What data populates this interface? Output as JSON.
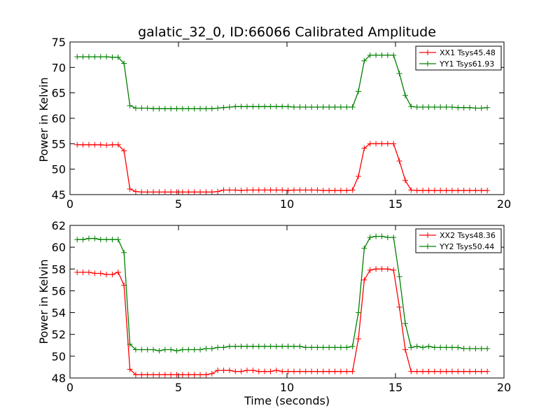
{
  "chart_data": [
    {
      "type": "line",
      "title": "galatic_32_0, ID:66066 Calibrated Amplitude",
      "xlabel": "",
      "ylabel": "Power in Kelvin",
      "xlim": [
        0,
        20
      ],
      "ylim": [
        45,
        75
      ],
      "xticks": [
        0,
        5,
        10,
        15,
        20
      ],
      "yticks": [
        45,
        50,
        55,
        60,
        65,
        70,
        75
      ],
      "legend_position": "top-right",
      "grid": false,
      "x": [
        0.33,
        0.6,
        0.87,
        1.14,
        1.41,
        1.68,
        1.95,
        2.22,
        2.49,
        2.76,
        3.03,
        3.3,
        3.57,
        3.84,
        4.11,
        4.38,
        4.65,
        4.92,
        5.19,
        5.46,
        5.73,
        6.0,
        6.27,
        6.54,
        6.81,
        7.08,
        7.35,
        7.62,
        7.89,
        8.16,
        8.43,
        8.7,
        8.97,
        9.24,
        9.51,
        9.78,
        10.05,
        10.32,
        10.59,
        10.86,
        11.13,
        11.4,
        11.67,
        11.94,
        12.21,
        12.48,
        12.75,
        13.02,
        13.29,
        13.56,
        13.83,
        14.1,
        14.37,
        14.64,
        14.91,
        15.18,
        15.45,
        15.72,
        15.99,
        16.26,
        16.53,
        16.8,
        17.07,
        17.34,
        17.61,
        17.88,
        18.15,
        18.42,
        18.69,
        18.96,
        19.23
      ],
      "series": [
        {
          "name": "XX1 Tsys45.48",
          "color": "#ff0000",
          "values": [
            54.8,
            54.8,
            54.8,
            54.8,
            54.8,
            54.7,
            54.8,
            54.8,
            53.6,
            46.1,
            45.6,
            45.5,
            45.5,
            45.5,
            45.5,
            45.5,
            45.5,
            45.5,
            45.5,
            45.5,
            45.5,
            45.5,
            45.5,
            45.5,
            45.6,
            45.9,
            45.9,
            45.9,
            45.8,
            45.9,
            45.9,
            45.9,
            45.9,
            45.9,
            45.9,
            45.9,
            45.8,
            45.9,
            45.9,
            45.9,
            45.9,
            45.9,
            45.8,
            45.8,
            45.8,
            45.8,
            45.8,
            45.9,
            48.6,
            54.1,
            55.0,
            55.0,
            55.0,
            55.0,
            55.0,
            51.6,
            47.8,
            45.9,
            45.8,
            45.8,
            45.8,
            45.8,
            45.8,
            45.8,
            45.8,
            45.8,
            45.8,
            45.8,
            45.8,
            45.8,
            45.8
          ]
        },
        {
          "name": "YY1 Tsys61.93",
          "color": "#008000",
          "values": [
            72.1,
            72.1,
            72.1,
            72.1,
            72.1,
            72.1,
            72.0,
            72.0,
            70.8,
            62.5,
            62.0,
            62.0,
            62.0,
            61.9,
            61.9,
            61.9,
            61.9,
            61.9,
            61.9,
            61.9,
            61.9,
            61.9,
            61.9,
            61.9,
            62.0,
            62.1,
            62.2,
            62.3,
            62.3,
            62.3,
            62.3,
            62.3,
            62.3,
            62.3,
            62.3,
            62.3,
            62.3,
            62.2,
            62.2,
            62.2,
            62.2,
            62.2,
            62.2,
            62.2,
            62.2,
            62.2,
            62.2,
            62.2,
            65.3,
            71.3,
            72.4,
            72.4,
            72.4,
            72.4,
            72.4,
            68.8,
            64.5,
            62.3,
            62.2,
            62.2,
            62.2,
            62.2,
            62.2,
            62.2,
            62.2,
            62.1,
            62.1,
            62.1,
            62.0,
            62.0,
            62.1
          ]
        }
      ]
    },
    {
      "type": "line",
      "title": "",
      "xlabel": "Time (seconds)",
      "ylabel": "Power in Kelvin",
      "xlim": [
        0,
        20
      ],
      "ylim": [
        48,
        62
      ],
      "xticks": [
        0,
        5,
        10,
        15,
        20
      ],
      "yticks": [
        48,
        50,
        52,
        54,
        56,
        58,
        60,
        62
      ],
      "legend_position": "top-right",
      "grid": false,
      "x": [
        0.33,
        0.6,
        0.87,
        1.14,
        1.41,
        1.68,
        1.95,
        2.22,
        2.49,
        2.76,
        3.03,
        3.3,
        3.57,
        3.84,
        4.11,
        4.38,
        4.65,
        4.92,
        5.19,
        5.46,
        5.73,
        6.0,
        6.27,
        6.54,
        6.81,
        7.08,
        7.35,
        7.62,
        7.89,
        8.16,
        8.43,
        8.7,
        8.97,
        9.24,
        9.51,
        9.78,
        10.05,
        10.32,
        10.59,
        10.86,
        11.13,
        11.4,
        11.67,
        11.94,
        12.21,
        12.48,
        12.75,
        13.02,
        13.29,
        13.56,
        13.83,
        14.1,
        14.37,
        14.64,
        14.91,
        15.18,
        15.45,
        15.72,
        15.99,
        16.26,
        16.53,
        16.8,
        17.07,
        17.34,
        17.61,
        17.88,
        18.15,
        18.42,
        18.69,
        18.96,
        19.23
      ],
      "series": [
        {
          "name": "XX2 Tsys48.36",
          "color": "#ff0000",
          "values": [
            57.7,
            57.7,
            57.7,
            57.6,
            57.6,
            57.5,
            57.5,
            57.7,
            56.5,
            48.8,
            48.3,
            48.3,
            48.3,
            48.3,
            48.3,
            48.3,
            48.3,
            48.3,
            48.3,
            48.3,
            48.3,
            48.3,
            48.3,
            48.4,
            48.7,
            48.7,
            48.7,
            48.6,
            48.6,
            48.7,
            48.7,
            48.6,
            48.6,
            48.6,
            48.7,
            48.6,
            48.6,
            48.6,
            48.6,
            48.6,
            48.6,
            48.6,
            48.6,
            48.6,
            48.6,
            48.6,
            48.6,
            48.6,
            51.6,
            57.0,
            57.9,
            58.0,
            58.0,
            58.0,
            57.9,
            54.5,
            50.6,
            48.6,
            48.6,
            48.6,
            48.6,
            48.6,
            48.6,
            48.6,
            48.6,
            48.6,
            48.6,
            48.6,
            48.6,
            48.6,
            48.6
          ]
        },
        {
          "name": "YY2 Tsys50.44",
          "color": "#008000",
          "values": [
            60.7,
            60.7,
            60.8,
            60.8,
            60.7,
            60.7,
            60.7,
            60.7,
            59.5,
            51.1,
            50.6,
            50.6,
            50.6,
            50.6,
            50.5,
            50.6,
            50.6,
            50.5,
            50.6,
            50.6,
            50.6,
            50.6,
            50.7,
            50.7,
            50.8,
            50.8,
            50.9,
            50.9,
            50.9,
            50.9,
            50.9,
            50.9,
            50.9,
            50.9,
            50.9,
            50.9,
            50.9,
            50.9,
            50.9,
            50.8,
            50.8,
            50.8,
            50.8,
            50.8,
            50.8,
            50.8,
            50.8,
            50.9,
            54.0,
            59.9,
            60.9,
            61.0,
            61.0,
            60.9,
            60.9,
            57.3,
            53.0,
            50.8,
            50.9,
            50.8,
            50.9,
            50.8,
            50.8,
            50.8,
            50.8,
            50.8,
            50.7,
            50.7,
            50.7,
            50.7,
            50.7
          ]
        }
      ]
    }
  ]
}
